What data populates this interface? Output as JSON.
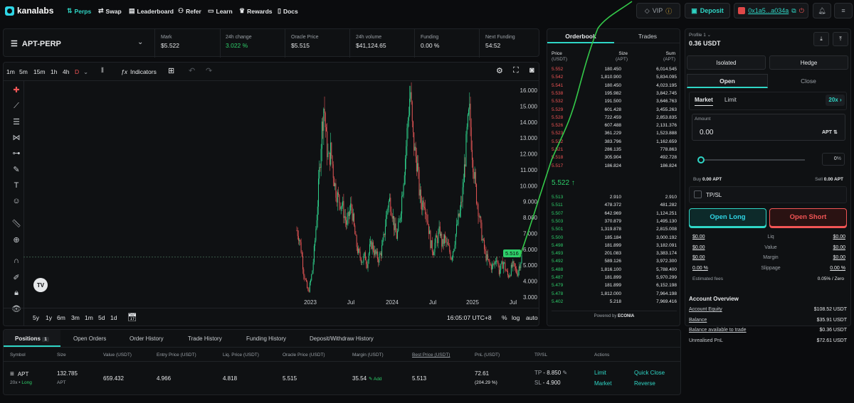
{
  "nav": {
    "logo": "kanalabs",
    "items": [
      {
        "label": "Perps",
        "icon": "perps-icon",
        "active": true
      },
      {
        "label": "Swap",
        "icon": "swap-icon"
      },
      {
        "label": "Leaderboard",
        "icon": "leaderboard-icon"
      },
      {
        "label": "Refer",
        "icon": "refer-icon"
      },
      {
        "label": "Learn",
        "icon": "learn-icon"
      },
      {
        "label": "Rewards",
        "icon": "rewards-icon"
      },
      {
        "label": "Docs",
        "icon": "docs-icon"
      }
    ],
    "vip": "VIP",
    "deposit": "Deposit",
    "wallet": "0x1a5...a034a"
  },
  "ticker": {
    "symbol": "APT-PERP",
    "stats": [
      {
        "label": "Mark",
        "value": "$5.522"
      },
      {
        "label": "24h change",
        "value": "3.022 %",
        "color": "green"
      },
      {
        "label": "Oracle Price",
        "value": "$5.515"
      },
      {
        "label": "24h volume",
        "value": "$41,124.65"
      },
      {
        "label": "Funding",
        "value": "0.00 %"
      },
      {
        "label": "Next Funding",
        "value": "54:52"
      }
    ]
  },
  "chart_toolbar": {
    "timeframes": [
      "1m",
      "5m",
      "15m",
      "1h",
      "4h",
      "D"
    ],
    "indicators": "Indicators",
    "ranges": [
      "5y",
      "1y",
      "6m",
      "3m",
      "1m",
      "5d",
      "1d"
    ],
    "clock": "16:05:07 UTC+8",
    "pct": "%",
    "log": "log",
    "auto": "auto",
    "last_price_tag": "5.516"
  },
  "chart_data": {
    "type": "candlestick",
    "yticks": [
      "16.000",
      "15.000",
      "14.000",
      "13.000",
      "12.000",
      "11.000",
      "10.000",
      "9.000",
      "8.000",
      "7.000",
      "6.000",
      "5.000",
      "4.000",
      "3.000"
    ],
    "xticks": [
      "2023",
      "Jul",
      "2024",
      "Jul",
      "2025",
      "Jul"
    ],
    "ylim": [
      2.5,
      16.5
    ],
    "close_series": [
      7.2,
      6.8,
      5.9,
      4.6,
      3.9,
      3.3,
      3.9,
      4.8,
      6.5,
      8.5,
      11.0,
      13.5,
      15.2,
      12.8,
      11.5,
      12.3,
      10.9,
      9.8,
      9.3,
      9.0,
      8.8,
      8.1,
      7.5,
      8.2,
      8.8,
      7.6,
      6.5,
      5.8,
      5.5,
      5.3,
      5.6,
      5.1,
      6.0,
      6.4,
      5.9,
      5.6,
      5.4,
      5.8,
      6.4,
      7.6,
      8.8,
      9.1,
      8.4,
      7.3,
      6.8,
      7.5,
      8.9,
      10.5,
      12.2,
      14.3,
      16.1,
      13.2,
      12.1,
      11.4,
      9.5,
      8.8,
      9.2,
      8.4,
      7.4,
      6.3,
      5.9,
      6.5,
      6.7,
      7.2,
      6.2,
      6.7,
      6.3,
      6.0,
      5.5,
      6.1,
      7.0,
      7.8,
      8.4,
      9.6,
      11.5,
      13.4,
      14.7,
      12.5,
      10.9,
      9.4,
      8.5,
      7.3,
      6.4,
      5.7,
      5.3,
      5.0,
      4.9,
      5.1,
      5.6,
      4.6,
      4.9,
      5.2,
      4.7,
      4.3,
      4.6,
      5.0,
      4.8,
      4.5,
      5.0,
      5.516
    ],
    "last": 5.516
  },
  "orderbook": {
    "tabs": [
      "Orderbook",
      "Trades"
    ],
    "headers": {
      "price": "Price",
      "price_unit": "(USDT)",
      "size": "Size",
      "size_unit": "(APT)",
      "sum": "Sum",
      "sum_unit": "(APT)"
    },
    "asks": [
      [
        "5.552",
        "180.450",
        "6,014.545"
      ],
      [
        "5.542",
        "1,810.900",
        "5,834.095"
      ],
      [
        "5.541",
        "180.450",
        "4,023.195"
      ],
      [
        "5.538",
        "195.982",
        "3,842.745"
      ],
      [
        "5.532",
        "191.500",
        "3,646.763"
      ],
      [
        "5.529",
        "601.428",
        "3,455.263"
      ],
      [
        "5.528",
        "722.459",
        "2,853.835"
      ],
      [
        "5.526",
        "607.488",
        "2,131.376"
      ],
      [
        "5.523",
        "361.229",
        "1,523.888"
      ],
      [
        "5.522",
        "383.796",
        "1,162.659"
      ],
      [
        "5.521",
        "286.135",
        "778.863"
      ],
      [
        "5.518",
        "305.904",
        "492.728"
      ],
      [
        "5.517",
        "186.824",
        "186.824"
      ]
    ],
    "mid": "5.522",
    "mid_arrow": "↑",
    "bids": [
      [
        "5.513",
        "2.910",
        "2.910"
      ],
      [
        "5.511",
        "478.372",
        "481.282"
      ],
      [
        "5.507",
        "642.969",
        "1,124.251"
      ],
      [
        "5.503",
        "370.879",
        "1,495.130"
      ],
      [
        "5.501",
        "1,319.878",
        "2,815.008"
      ],
      [
        "5.500",
        "185.184",
        "3,000.192"
      ],
      [
        "5.498",
        "181.899",
        "3,182.091"
      ],
      [
        "5.493",
        "201.083",
        "3,383.174"
      ],
      [
        "5.492",
        "589.126",
        "3,972.300"
      ],
      [
        "5.488",
        "1,816.100",
        "5,788.400"
      ],
      [
        "5.487",
        "181.899",
        "5,970.299"
      ],
      [
        "5.479",
        "181.899",
        "6,152.198"
      ],
      [
        "5.478",
        "1,812.000",
        "7,964.198"
      ],
      [
        "5.402",
        "5.218",
        "7,969.416"
      ]
    ],
    "powered": "Powered by",
    "powered_brand": "ECONIA"
  },
  "sidebar": {
    "profile": "Profile 1",
    "balance": "0.36 USDT",
    "margin_modes": [
      "Isolated",
      "Hedge"
    ],
    "tabs": [
      "Open",
      "Close"
    ],
    "order_types": [
      "Market",
      "Limit"
    ],
    "leverage": "20x",
    "amount_label": "Amount",
    "amount_value": "0.00",
    "amount_unit": "APT",
    "slider_pct": "0",
    "slider_unit": "%",
    "buy_label": "Buy",
    "buy_value": "0.00 APT",
    "sell_label": "Sell",
    "sell_value": "0.00 APT",
    "tpsl": "TP/SL",
    "open_long": "Open Long",
    "open_short": "Open Short",
    "summary": [
      {
        "left": "$0.00",
        "mid": "Liq",
        "right": "$0.00"
      },
      {
        "left": "$0.00",
        "mid": "Value",
        "right": "$0.00"
      },
      {
        "left": "$0.00",
        "mid": "Margin",
        "right": "$0.00"
      },
      {
        "left": "0.00 %",
        "mid": "Slippage",
        "right": "0.00 %"
      }
    ],
    "fees_label": "Estimated fees",
    "fees_value": "0.05% / Zero",
    "account_title": "Account Overview",
    "account": [
      {
        "label": "Account Equity",
        "value": "$108.52 USDT"
      },
      {
        "label": "Balance",
        "value": "$35.91 USDT"
      },
      {
        "label": "Balance available to trade",
        "value": "$0.36 USDT"
      },
      {
        "label": "Unrealised PnL",
        "value": "$72.61 USDT"
      }
    ]
  },
  "positions": {
    "tabs": [
      "Positions",
      "Open Orders",
      "Order History",
      "Trade History",
      "Funding History",
      "Deposit/Withdraw History"
    ],
    "count": "1",
    "headers": [
      "Symbol",
      "Size",
      "Value (USDT)",
      "Entry Price (USDT)",
      "Liq. Price (USDT)",
      "Oracle Price (USDT)",
      "Margin (USDT)",
      "Best Price (USDT)",
      "PnL (USDT)",
      "TP/SL",
      "Actions"
    ],
    "row": {
      "symbol": "APT",
      "leverage": "20x",
      "side": "Long",
      "size": "132.785",
      "size_unit": "APT",
      "value": "659.432",
      "entry": "4.966",
      "liq": "4.818",
      "oracle": "5.515",
      "margin": "35.54",
      "add": "Add",
      "best": "5.513",
      "pnl": "72.61",
      "pnl_pct": "(204.29 %)",
      "tp_label": "TP",
      "tp": "8.850",
      "sl_label": "SL",
      "sl": "4.900",
      "actions": [
        "Limit",
        "Quick Close",
        "Market",
        "Reverse"
      ]
    }
  }
}
